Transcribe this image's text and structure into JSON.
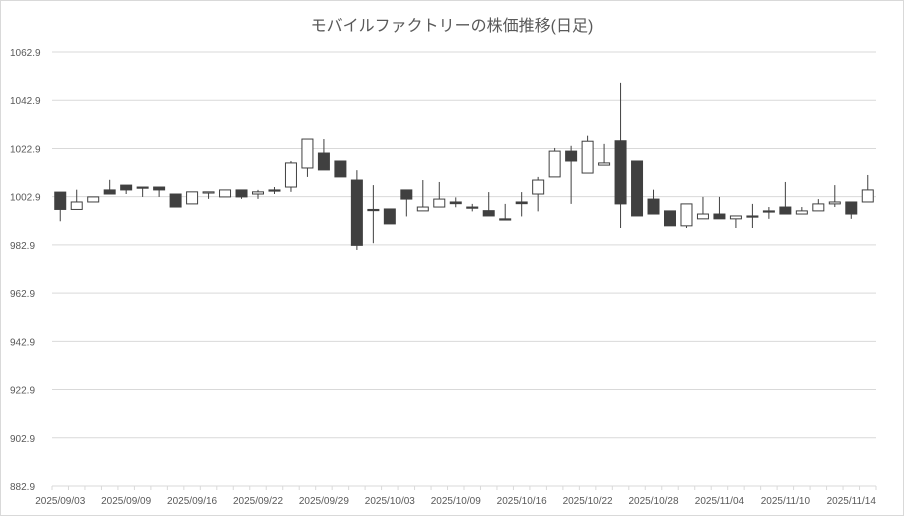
{
  "chart_data": {
    "type": "candlestick",
    "title": "モバイルファクトリーの株価推移(日足)",
    "xlabel": "",
    "ylabel": "",
    "ylim": [
      882.9,
      1062.9
    ],
    "y_ticks": [
      "882.9",
      "902.9",
      "922.9",
      "942.9",
      "962.9",
      "982.9",
      "1002.9",
      "1022.9",
      "1042.9",
      "1062.9"
    ],
    "x_tick_labels": [
      "2025/09/03",
      "2025/09/09",
      "2025/09/16",
      "2025/09/22",
      "2025/09/29",
      "2025/10/03",
      "2025/10/09",
      "2025/10/16",
      "2025/10/22",
      "2025/10/28",
      "2025/11/04",
      "2025/11/10",
      "2025/11/14"
    ],
    "grid": "horizontal",
    "legend": "none",
    "colors": {
      "up": "#ffffff",
      "down": "#404040",
      "line": "#404040",
      "grid": "#d9d9d9"
    },
    "categories": [
      "2025/09/03",
      "2025/09/04",
      "2025/09/05",
      "2025/09/08",
      "2025/09/09",
      "2025/09/10",
      "2025/09/11",
      "2025/09/12",
      "2025/09/16",
      "2025/09/17",
      "2025/09/18",
      "2025/09/19",
      "2025/09/22",
      "2025/09/24",
      "2025/09/25",
      "2025/09/26",
      "2025/09/29",
      "2025/09/30",
      "2025/10/01",
      "2025/10/02",
      "2025/10/03",
      "2025/10/06",
      "2025/10/07",
      "2025/10/08",
      "2025/10/09",
      "2025/10/10",
      "2025/10/14",
      "2025/10/15",
      "2025/10/16",
      "2025/10/17",
      "2025/10/20",
      "2025/10/21",
      "2025/10/22",
      "2025/10/23",
      "2025/10/24",
      "2025/10/27",
      "2025/10/28",
      "2025/10/29",
      "2025/10/30",
      "2025/10/31",
      "2025/11/04",
      "2025/11/05",
      "2025/11/06",
      "2025/11/07",
      "2025/11/10",
      "2025/11/11",
      "2025/11/12",
      "2025/11/13",
      "2025/11/14",
      "2025/11/17"
    ],
    "ohlc": [
      [
        1004.8,
        1004.8,
        992.7,
        997.6
      ],
      [
        997.6,
        1005.8,
        997.6,
        1000.7
      ],
      [
        1000.7,
        1002.8,
        1000.7,
        1002.8
      ],
      [
        1005.7,
        1009.9,
        1004.0,
        1004.0
      ],
      [
        1007.7,
        1007.7,
        1004.0,
        1005.7
      ],
      [
        1006.9,
        1006.9,
        1002.8,
        1006.5
      ],
      [
        1006.9,
        1006.9,
        1002.8,
        1005.7
      ],
      [
        1004.0,
        1004.0,
        998.6,
        998.6
      ],
      [
        999.9,
        1004.9,
        999.9,
        1004.9
      ],
      [
        1004.5,
        1004.9,
        1002.0,
        1004.9
      ],
      [
        1002.8,
        1005.7,
        1002.8,
        1005.7
      ],
      [
        1005.7,
        1005.7,
        1002.0,
        1002.8
      ],
      [
        1004.0,
        1005.7,
        1002.0,
        1004.9
      ],
      [
        1005.7,
        1006.9,
        1004.0,
        1005.3
      ],
      [
        1006.9,
        1017.7,
        1004.9,
        1016.9
      ],
      [
        1014.8,
        1026.8,
        1011.1,
        1026.8
      ],
      [
        1021.0,
        1026.8,
        1014.0,
        1014.0
      ],
      [
        1017.7,
        1017.7,
        1011.1,
        1011.1
      ],
      [
        1009.8,
        1013.9,
        980.8,
        982.7
      ],
      [
        997.6,
        1007.7,
        983.6,
        997.4
      ],
      [
        997.8,
        997.8,
        991.6,
        991.6
      ],
      [
        1005.7,
        1005.7,
        994.7,
        1001.9
      ],
      [
        997.0,
        1009.8,
        997.0,
        998.6
      ],
      [
        998.6,
        1009.0,
        998.6,
        1001.9
      ],
      [
        1000.7,
        1002.6,
        998.5,
        1000.0
      ],
      [
        998.6,
        999.9,
        996.8,
        998.2
      ],
      [
        997.1,
        1004.8,
        994.9,
        994.9
      ],
      [
        993.7,
        999.9,
        993.3,
        993.3
      ],
      [
        1000.7,
        1004.8,
        994.7,
        1000.0
      ],
      [
        1004.0,
        1011.1,
        996.8,
        1009.8
      ],
      [
        1011.1,
        1023.1,
        1011.1,
        1021.8
      ],
      [
        1021.8,
        1024.0,
        999.9,
        1017.7
      ],
      [
        1012.7,
        1028.2,
        1012.7,
        1025.9
      ],
      [
        1016.0,
        1024.8,
        1016.0,
        1016.9
      ],
      [
        1026.1,
        1050.1,
        989.9,
        999.9
      ],
      [
        1017.7,
        1017.7,
        994.9,
        994.9
      ],
      [
        1001.9,
        1005.8,
        995.7,
        995.7
      ],
      [
        997.0,
        997.0,
        990.8,
        990.8
      ],
      [
        990.8,
        999.9,
        989.9,
        999.9
      ],
      [
        993.7,
        1002.8,
        993.7,
        995.7
      ],
      [
        995.7,
        1002.8,
        993.7,
        993.7
      ],
      [
        993.7,
        994.9,
        989.9,
        994.9
      ],
      [
        994.9,
        999.9,
        989.9,
        994.5
      ],
      [
        997.0,
        998.6,
        993.7,
        996.6
      ],
      [
        998.6,
        1009.0,
        995.7,
        995.7
      ],
      [
        995.7,
        998.6,
        995.7,
        997.0
      ],
      [
        997.0,
        1001.9,
        997.0,
        999.9
      ],
      [
        999.9,
        1007.7,
        998.6,
        1000.7
      ],
      [
        1000.7,
        1000.7,
        993.7,
        995.7
      ],
      [
        1000.7,
        1011.9,
        1000.7,
        1005.7
      ]
    ]
  }
}
